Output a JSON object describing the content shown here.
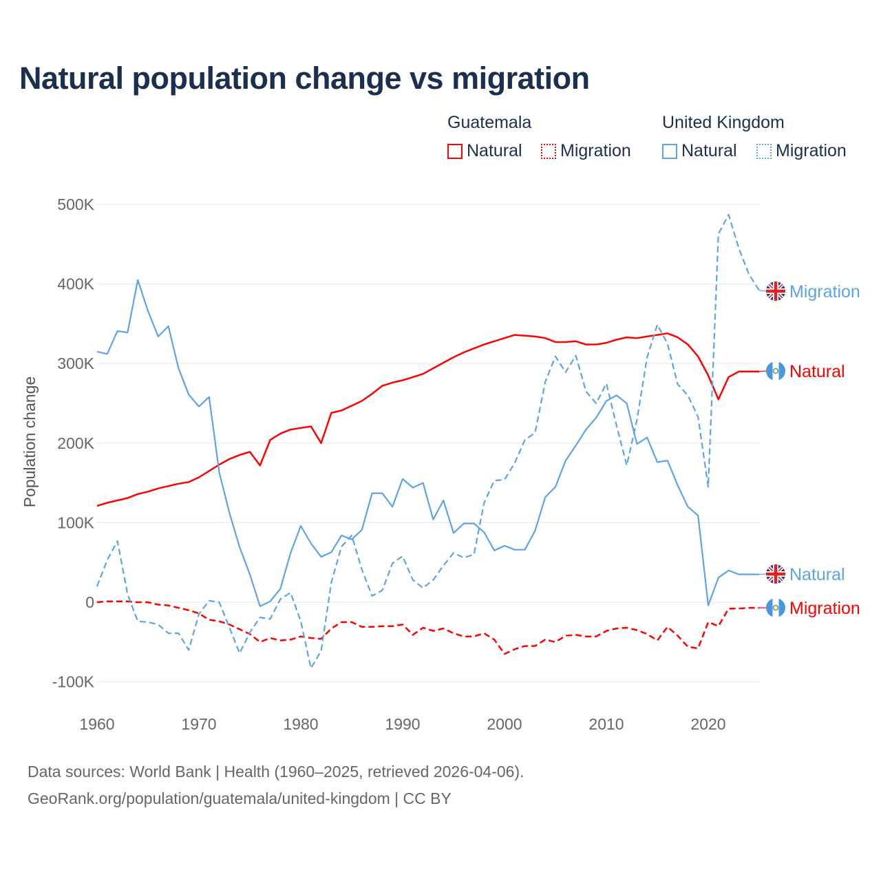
{
  "title": "Natural population change vs migration",
  "legend": {
    "groups": [
      {
        "name": "Guatemala",
        "items": [
          {
            "label": "Natural",
            "style": "solid",
            "color": "#ff0000"
          },
          {
            "label": "Migration",
            "style": "dotted",
            "color": "#ff0000"
          }
        ]
      },
      {
        "name": "United Kingdom",
        "items": [
          {
            "label": "Natural",
            "style": "solid",
            "color": "#5ba4e8"
          },
          {
            "label": "Migration",
            "style": "dotted",
            "color": "#5ba4e8"
          }
        ]
      }
    ]
  },
  "footer": {
    "line1": "Data sources: World Bank | Health (1960–2025, retrieved 2026-04-06).",
    "line2": "GeoRank.org/population/guatemala/united-kingdom | CC BY"
  },
  "chart_data": {
    "type": "line",
    "title": "Natural population change vs migration",
    "xlabel": "",
    "ylabel": "Population change",
    "xlim": [
      1960,
      2025
    ],
    "ylim": [
      -100000,
      500000
    ],
    "xticks": [
      1960,
      1970,
      1980,
      1990,
      2000,
      2010,
      2020
    ],
    "xtick_labels": [
      "1960",
      "1970",
      "1980",
      "1990",
      "2000",
      "2010",
      "2020"
    ],
    "yticks": [
      -100000,
      0,
      100000,
      200000,
      300000,
      400000,
      500000
    ],
    "ytick_labels": [
      "-100K",
      "0",
      "100K",
      "200K",
      "300K",
      "400K",
      "500K"
    ],
    "grid": true,
    "legend_position": "top-right",
    "x_start": 1960,
    "series": [
      {
        "name": "Guatemala Natural",
        "end_label": "Natural",
        "country": "Guatemala",
        "color": "#ff0000",
        "dashed": false,
        "width": 2.5,
        "values": [
          121000,
          125000,
          128000,
          131000,
          136000,
          139000,
          143000,
          146000,
          149000,
          151000,
          157000,
          165000,
          173000,
          180000,
          185000,
          189000,
          172000,
          204000,
          212000,
          217000,
          219000,
          221000,
          200000,
          238000,
          241000,
          247000,
          253000,
          262000,
          272000,
          276000,
          279000,
          283000,
          287000,
          294000,
          301000,
          308000,
          314000,
          319000,
          324000,
          328000,
          332000,
          336000,
          335000,
          334000,
          332000,
          327000,
          327000,
          328000,
          324000,
          324000,
          326000,
          330000,
          333000,
          332000,
          334000,
          336000,
          338000,
          333000,
          324000,
          309000,
          285000,
          255000,
          283000,
          290000,
          290000,
          290000
        ]
      },
      {
        "name": "Guatemala Migration",
        "end_label": "Migration",
        "country": "Guatemala",
        "color": "#ff0000",
        "dashed": true,
        "width": 2.5,
        "values": [
          0,
          1000,
          1000,
          1000,
          0,
          0,
          -3000,
          -4000,
          -7000,
          -10000,
          -14000,
          -22000,
          -24000,
          -28000,
          -34000,
          -40000,
          -50000,
          -45000,
          -48000,
          -47000,
          -43000,
          -45000,
          -46000,
          -33000,
          -25000,
          -25000,
          -31000,
          -31000,
          -30000,
          -30000,
          -28000,
          -41000,
          -32000,
          -36000,
          -33000,
          -39000,
          -43000,
          -43000,
          -39000,
          -47000,
          -65000,
          -59000,
          -55000,
          -55000,
          -47000,
          -50000,
          -42000,
          -41000,
          -43000,
          -43000,
          -36000,
          -33000,
          -32000,
          -35000,
          -40000,
          -48000,
          -31000,
          -42000,
          -56000,
          -58000,
          -25000,
          -30000,
          -8000,
          -8000,
          -7000,
          -7000
        ]
      },
      {
        "name": "United Kingdom Natural",
        "end_label": "Natural",
        "country": "United Kingdom",
        "color": "#5ba4e8",
        "dashed": false,
        "width": 2.2,
        "values": [
          315000,
          312000,
          341000,
          339000,
          405000,
          366000,
          334000,
          347000,
          294000,
          261000,
          246000,
          258000,
          163000,
          112000,
          69000,
          35000,
          -5000,
          1000,
          17000,
          62000,
          96000,
          74000,
          57000,
          63000,
          84000,
          79000,
          91000,
          137000,
          137000,
          120000,
          155000,
          144000,
          150000,
          104000,
          128000,
          87000,
          99000,
          99000,
          88000,
          65000,
          71000,
          66000,
          66000,
          90000,
          132000,
          145000,
          178000,
          197000,
          217000,
          232000,
          253000,
          260000,
          250000,
          199000,
          207000,
          176000,
          178000,
          147000,
          120000,
          109000,
          -4000,
          31000,
          40000,
          35000,
          35000,
          35000
        ]
      },
      {
        "name": "United Kingdom Migration",
        "end_label": "Migration",
        "country": "United Kingdom",
        "color": "#5ba4e8",
        "dashed": true,
        "width": 2.2,
        "values": [
          20000,
          53000,
          77000,
          10000,
          -24000,
          -25000,
          -28000,
          -39000,
          -39000,
          -60000,
          -15000,
          2000,
          0,
          -32000,
          -64000,
          -38000,
          -19000,
          -21000,
          4000,
          12000,
          -24000,
          -83000,
          -61000,
          25000,
          70000,
          84000,
          41000,
          8000,
          15000,
          49000,
          58000,
          28000,
          18000,
          28000,
          46000,
          62000,
          56000,
          60000,
          125000,
          153000,
          154000,
          175000,
          204000,
          213000,
          277000,
          309000,
          289000,
          310000,
          265000,
          250000,
          275000,
          222000,
          172000,
          229000,
          308000,
          349000,
          325000,
          274000,
          260000,
          233000,
          145000,
          463000,
          487000,
          445000,
          412000,
          392000
        ]
      }
    ]
  }
}
